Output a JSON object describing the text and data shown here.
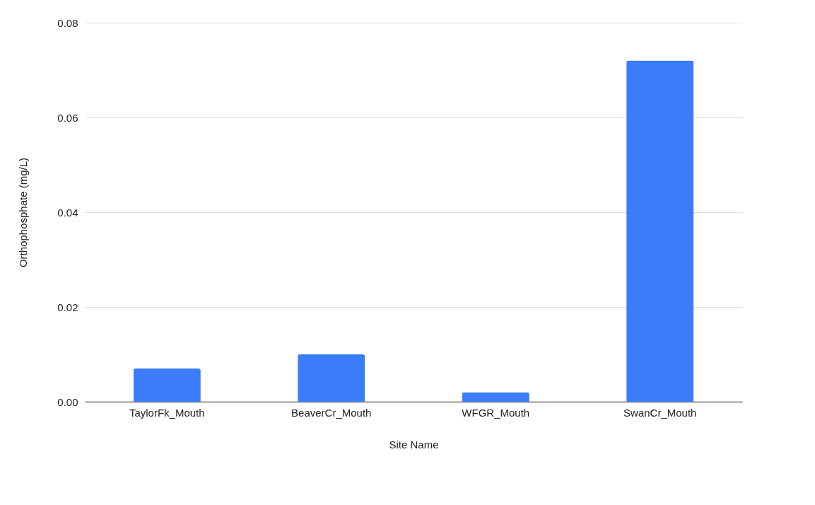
{
  "chart_data": {
    "type": "bar",
    "xlabel": "Site Name",
    "ylabel": "Orthophosphate (mg/L)",
    "categories": [
      "TaylorFk_Mouth",
      "BeaverCr_Mouth",
      "WFGR_Mouth",
      "SwanCr_Mouth"
    ],
    "values": [
      0.007,
      0.01,
      0.002,
      0.072
    ],
    "color": "#3b7cf9",
    "ylim": [
      0,
      0.08
    ],
    "yticks": [
      {
        "value": 0,
        "label": "0.00"
      },
      {
        "value": 0.02,
        "label": "0.02"
      },
      {
        "value": 0.04,
        "label": "0.04"
      },
      {
        "value": 0.06,
        "label": "0.06"
      },
      {
        "value": 0.08,
        "label": "0.08"
      }
    ],
    "grid": "y",
    "legend": false
  }
}
